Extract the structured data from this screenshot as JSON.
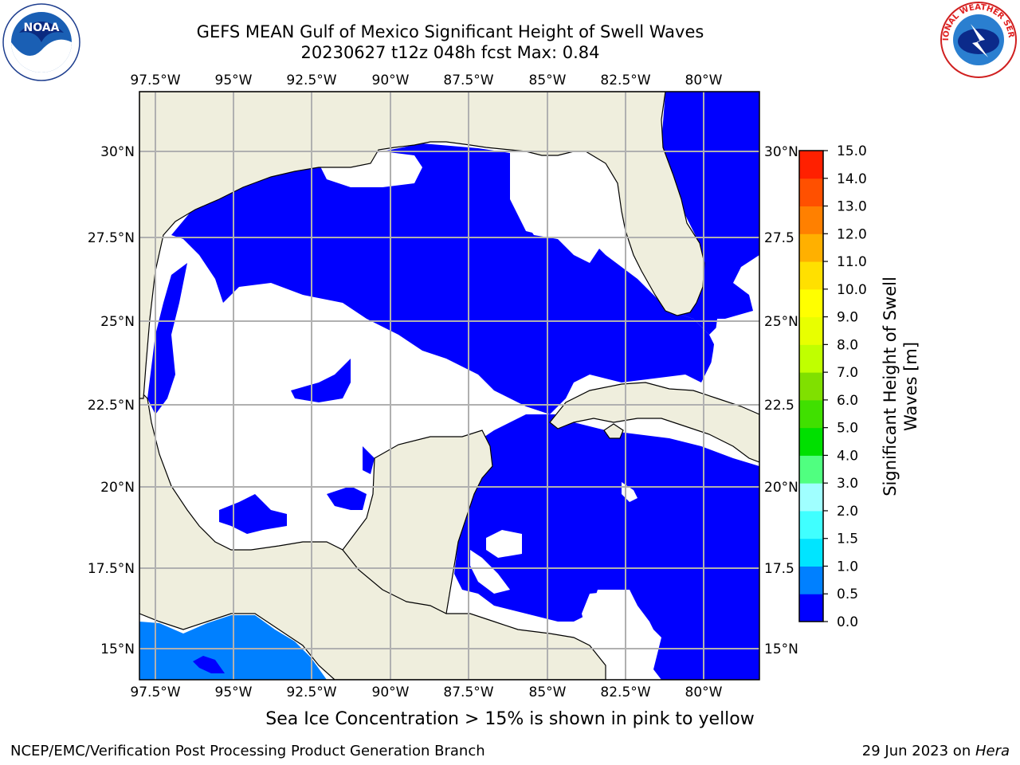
{
  "header": {
    "title_line1": "GEFS MEAN Gulf of Mexico Significant Height of Swell Waves",
    "title_line2": "20230627 t12z 048h fcst   Max: 0.84"
  },
  "logos": {
    "left": {
      "icon": "noaa-logo-icon",
      "text": "NOAA"
    },
    "right": {
      "icon": "nws-logo-icon",
      "text": "NATIONAL WEATHER SERVICE"
    }
  },
  "map": {
    "lon_labels": [
      "97.5°W",
      "95°W",
      "92.5°W",
      "90°W",
      "87.5°W",
      "85°W",
      "82.5°W",
      "80°W"
    ],
    "lat_labels": [
      "30°N",
      "27.5°N",
      "25°N",
      "22.5°N",
      "20°N",
      "17.5°N",
      "15°N"
    ],
    "lat_labels_right": [
      "30°N",
      "27.5",
      "25°N",
      "22.5",
      "20°N",
      "17.5",
      "15°N"
    ],
    "colors": {
      "land": "#efeedd",
      "ocean_low": "#0000ff",
      "ocean_mid": "#0080ff",
      "grid": "#b0b0b0",
      "no_data": "#ffffff"
    }
  },
  "colorbar": {
    "label_line1": "Significant Height of Swell",
    "label_line2": "Waves [m]",
    "ticks": [
      "15.0",
      "14.0",
      "13.0",
      "12.0",
      "11.0",
      "10.0",
      "9.0",
      "8.0",
      "7.0",
      "6.0",
      "5.0",
      "4.0",
      "3.0",
      "2.0",
      "1.5",
      "1.0",
      "0.5",
      "0.0"
    ],
    "colors": [
      "#0000ff",
      "#0080ff",
      "#00e5ff",
      "#40ffff",
      "#a0ffff",
      "#50ff80",
      "#00e000",
      "#40e000",
      "#80e000",
      "#c0ff00",
      "#e8ff00",
      "#ffff00",
      "#ffe000",
      "#ffb000",
      "#ff8000",
      "#ff5000",
      "#ff2000"
    ]
  },
  "subnote": "Sea Ice Concentration > 15% is shown in pink to yellow",
  "footer": {
    "left": "NCEP/EMC/Verification Post Processing Product Generation Branch",
    "right_prefix": "29 Jun 2023 on ",
    "right_machine": "Hera"
  }
}
